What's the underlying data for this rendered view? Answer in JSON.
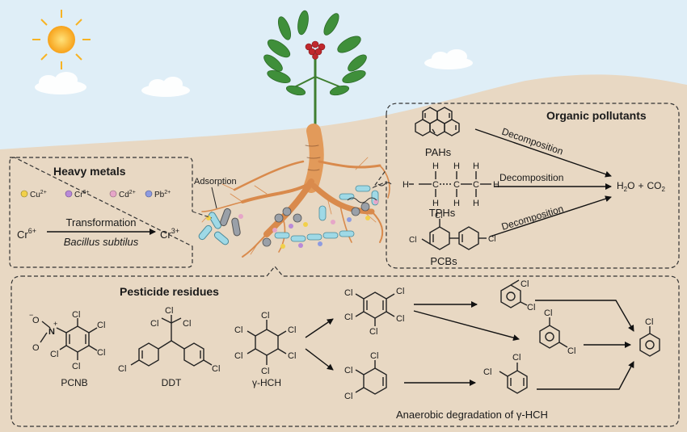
{
  "sections": {
    "heavy_metals": {
      "title": "Heavy metals",
      "ions": [
        {
          "label": "Cu",
          "charge": "2+",
          "color": "#f2d04a"
        },
        {
          "label": "Cr",
          "charge": "6+",
          "color": "#b98ad8"
        },
        {
          "label": "Cd",
          "charge": "2+",
          "color": "#e6a6c8"
        },
        {
          "label": "Pb",
          "charge": "2+",
          "color": "#8e9be0"
        }
      ],
      "reaction": {
        "reactant": "Cr",
        "reactant_charge": "6+",
        "product": "Cr",
        "product_charge": "3+",
        "process": "Transformation",
        "agent": "Bacillus subtilus"
      },
      "adsorption_label": "Adsorption"
    },
    "organic_pollutants": {
      "title": "Organic pollutants",
      "compounds": [
        "PAHs",
        "TPHs",
        "PCBs"
      ],
      "process": "Decomposition",
      "tph_atoms": {
        "h": "H",
        "c": "C"
      },
      "pcb_cl": "Cl",
      "product": {
        "h2o_h": "H",
        "h2o_sub": "2",
        "h2o_o": "O",
        "plus": "+",
        "co2_c": "CO",
        "co2_sub": "2"
      }
    },
    "pesticide_residues": {
      "title": "Pesticide residues",
      "compounds": [
        "PCNB",
        "DDT",
        "γ-HCH"
      ],
      "nitro": {
        "o_minus": "O",
        "minus": "−",
        "n": "N",
        "plus": "+",
        "o": "O"
      },
      "cl": "Cl",
      "pathway_label": "Anaerobic degradation of γ-HCH"
    }
  },
  "colors": {
    "sky": "#dfeef7",
    "soil": "#e8d8c3",
    "panel_border": "#333333",
    "root": "#d98a4c",
    "leaf": "#3f8f3a",
    "berry": "#c0282d",
    "sun": "#f7b324"
  }
}
